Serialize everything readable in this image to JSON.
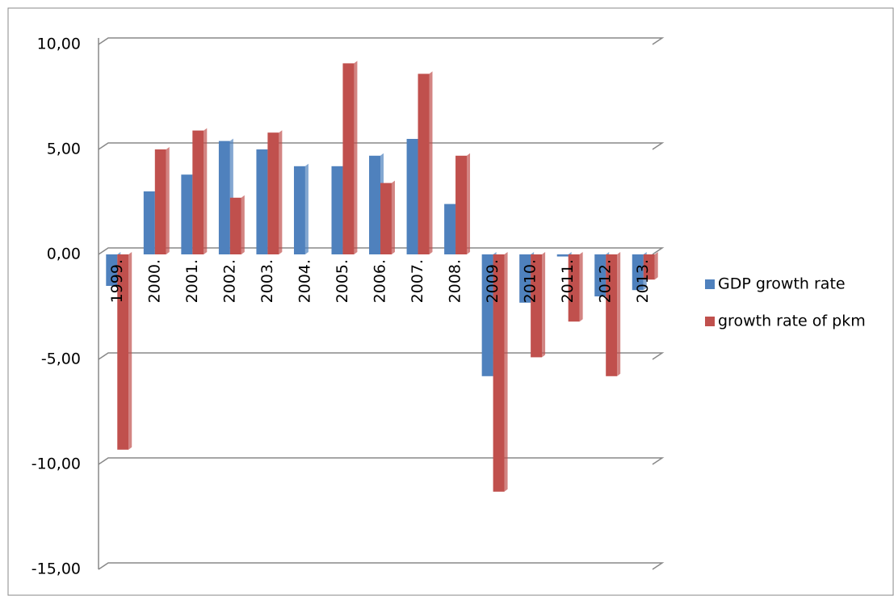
{
  "chart_data": {
    "type": "bar",
    "categories": [
      "1999.",
      "2000.",
      "2001.",
      "2002.",
      "2003.",
      "2004.",
      "2005.",
      "2006.",
      "2007.",
      "2008.",
      "2009.",
      "2010.",
      "2011.",
      "2012.",
      "2013."
    ],
    "series": [
      {
        "name": "GDP growth rate",
        "color": "#4f81bd",
        "values": [
          -1.5,
          3.0,
          3.8,
          5.4,
          5.0,
          4.2,
          4.2,
          4.7,
          5.5,
          2.4,
          -5.8,
          -2.3,
          -0.1,
          -2.0,
          -1.7
        ]
      },
      {
        "name": "growth rate of pkm",
        "color": "#c0504d",
        "values": [
          -9.3,
          5.0,
          5.9,
          2.7,
          5.8,
          0.0,
          9.1,
          3.4,
          8.6,
          4.7,
          -11.3,
          -4.9,
          -3.2,
          -5.8,
          -1.2
        ]
      }
    ],
    "ylim": [
      -15,
      10
    ],
    "yticks": [
      {
        "value": -15,
        "label": "-15,00"
      },
      {
        "value": -10,
        "label": "-10,00"
      },
      {
        "value": -5,
        "label": "-5,00"
      },
      {
        "value": 0,
        "label": "0,00"
      },
      {
        "value": 5,
        "label": "5,00"
      },
      {
        "value": 10,
        "label": "10,00"
      }
    ],
    "grid": true,
    "legend": "right"
  }
}
